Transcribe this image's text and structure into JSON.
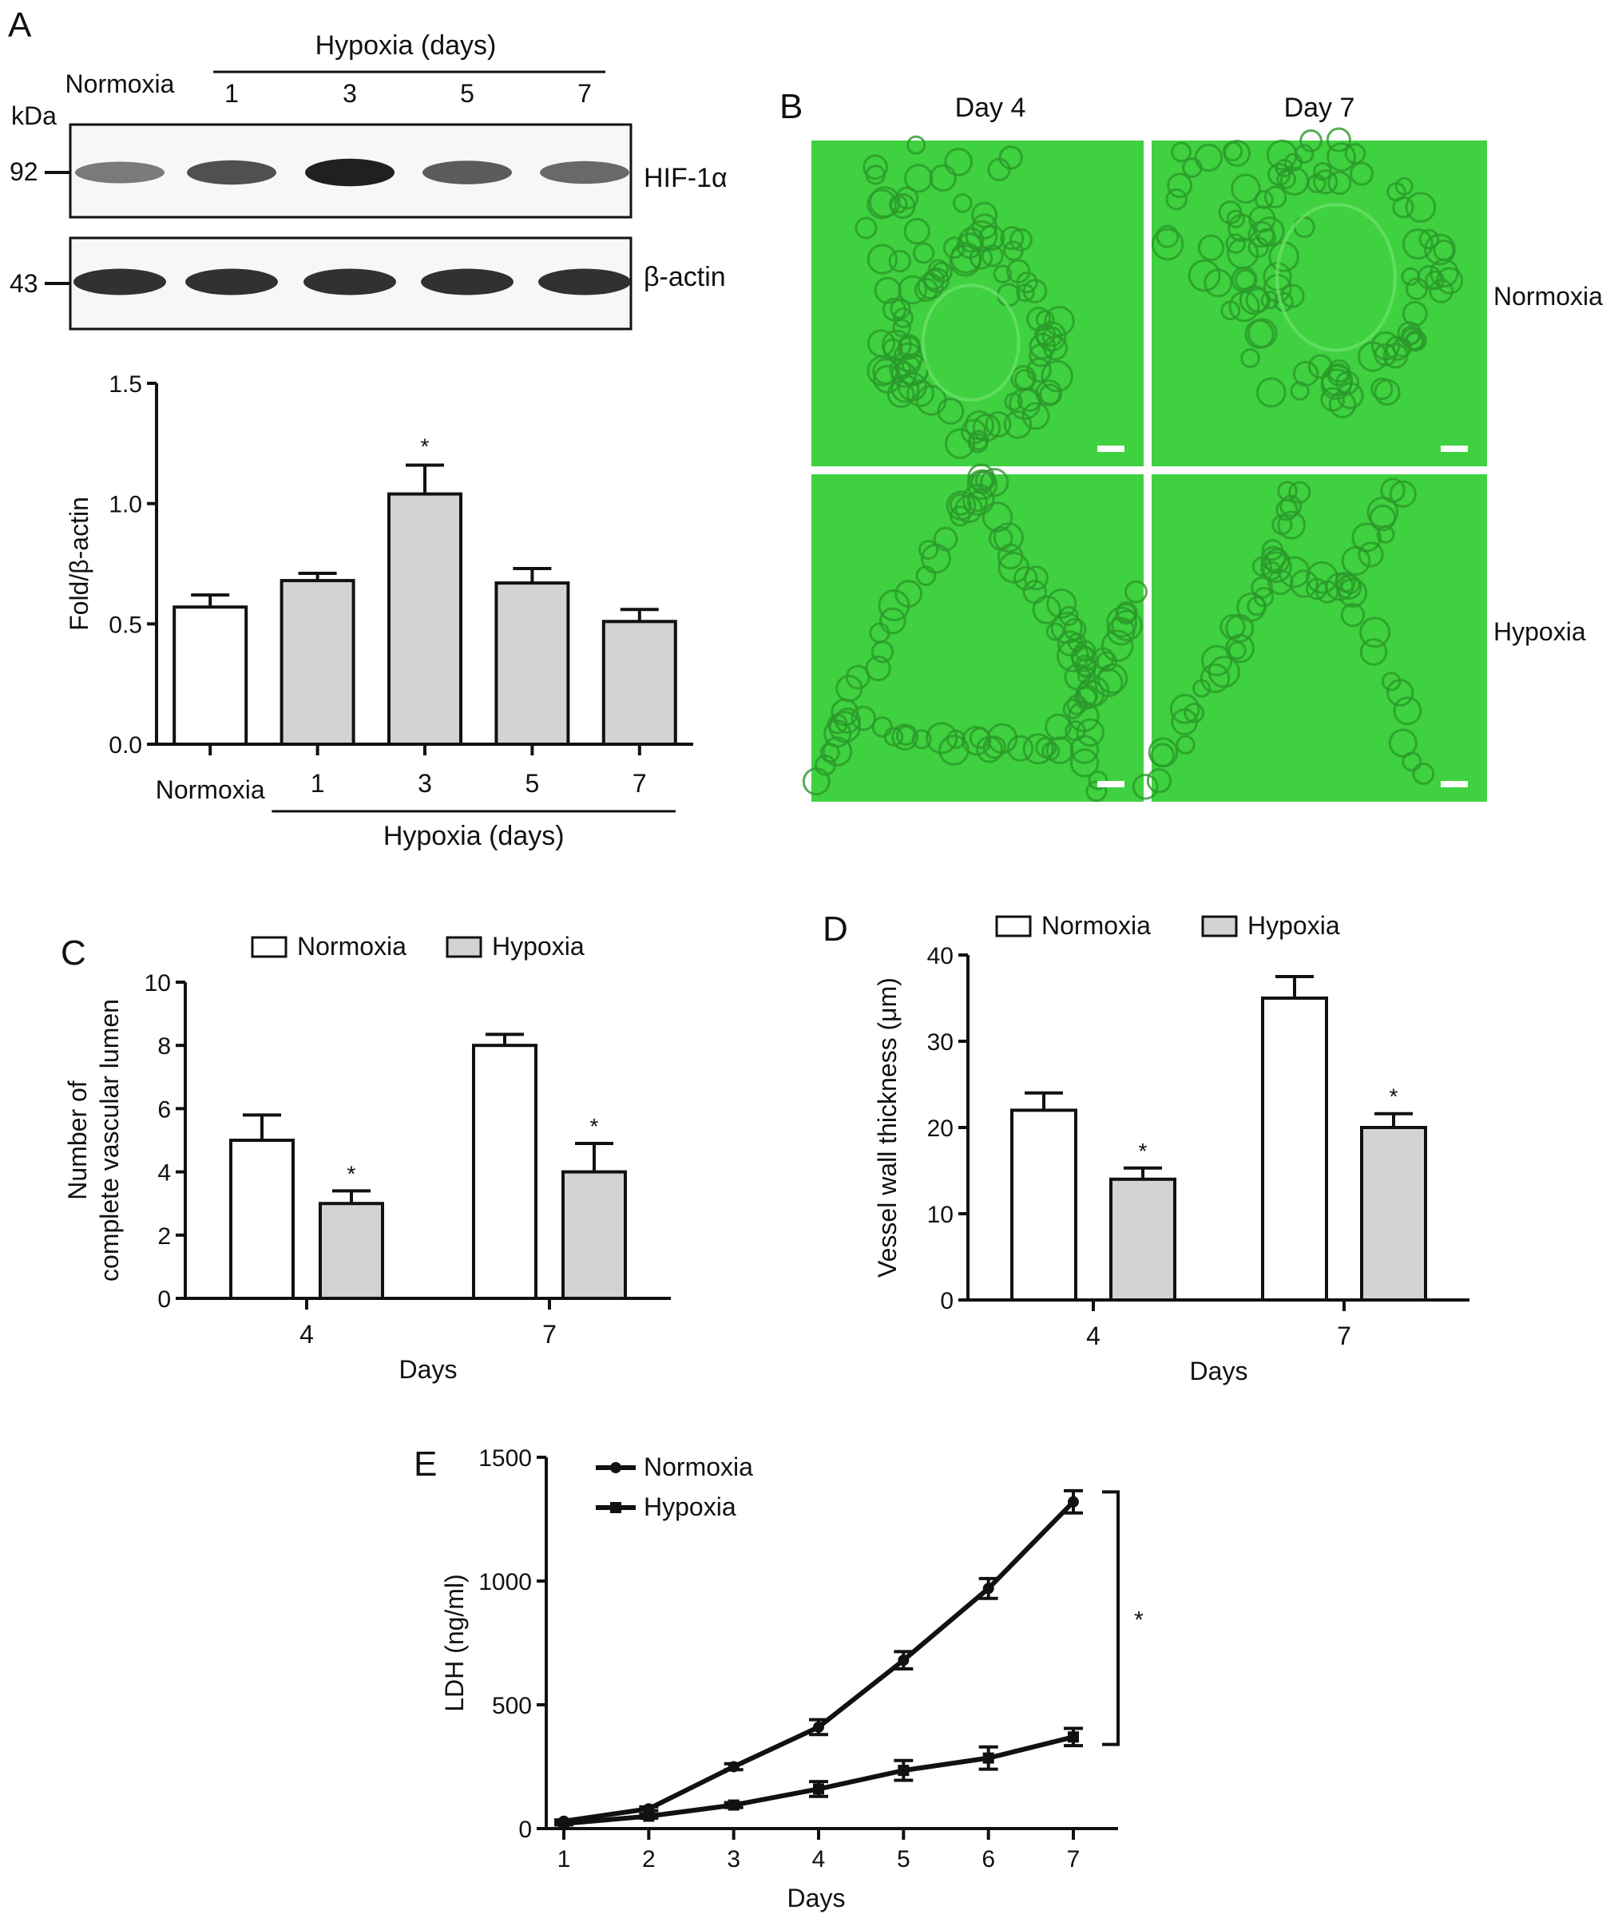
{
  "panels": {
    "A": {
      "letter": "A",
      "blot": {
        "group_header": "Hypoxia (days)",
        "lane_labels": [
          "Normoxia",
          "1",
          "3",
          "5",
          "7"
        ],
        "kda_label": "kDa",
        "markers": [
          "92",
          "43"
        ],
        "bands": [
          "HIF-1α",
          "β-actin"
        ],
        "hif_intensity": [
          0.55,
          0.72,
          0.92,
          0.68,
          0.62
        ],
        "actin_intensity": [
          0.85,
          0.85,
          0.85,
          0.85,
          0.85
        ]
      }
    },
    "B": {
      "letter": "B",
      "columns": [
        "Day 4",
        "Day 7"
      ],
      "rows": [
        "Normoxia",
        "Hypoxia"
      ],
      "colors": {
        "background": "#3fd13f",
        "cell": "#2a9a2a"
      }
    },
    "C": {
      "letter": "C"
    },
    "D": {
      "letter": "D"
    },
    "E": {
      "letter": "E"
    }
  },
  "chart_data": [
    {
      "id": "A",
      "type": "bar",
      "categories": [
        "Normoxia",
        "1",
        "3",
        "5",
        "7"
      ],
      "values": [
        0.57,
        0.68,
        1.04,
        0.67,
        0.51
      ],
      "errors": [
        0.05,
        0.03,
        0.12,
        0.06,
        0.05
      ],
      "significant": [
        false,
        false,
        true,
        false,
        false
      ],
      "ylabel": "Fold/β-actin",
      "xlabel": "",
      "group_label": "Hypoxia (days)",
      "ylim": [
        0,
        1.5
      ],
      "yticks": [
        "0.0",
        "0.5",
        "1.0",
        "1.5"
      ],
      "yticks_values": [
        0,
        0.5,
        1.0,
        1.5
      ],
      "colors": [
        "#ffffff",
        "#d3d3d3",
        "#d3d3d3",
        "#d3d3d3",
        "#d3d3d3"
      ],
      "significance_mark": "*"
    },
    {
      "id": "C",
      "type": "bar",
      "categories": [
        "4",
        "7"
      ],
      "series": [
        {
          "name": "Normoxia",
          "values": [
            5,
            8
          ],
          "errors": [
            0.8,
            0.35
          ],
          "significant": [
            false,
            false
          ],
          "color": "#ffffff"
        },
        {
          "name": "Hypoxia",
          "values": [
            3,
            4
          ],
          "errors": [
            0.4,
            0.9
          ],
          "significant": [
            true,
            true
          ],
          "color": "#d3d3d3"
        }
      ],
      "xlabel": "Days",
      "ylabel_lines": [
        "Number of",
        "complete vascular lumen"
      ],
      "ylim": [
        0,
        10
      ],
      "yticks": [
        "0",
        "2",
        "4",
        "6",
        "8",
        "10"
      ],
      "yticks_values": [
        0,
        2,
        4,
        6,
        8,
        10
      ],
      "legend": "top",
      "significance_mark": "*"
    },
    {
      "id": "D",
      "type": "bar",
      "categories": [
        "4",
        "7"
      ],
      "series": [
        {
          "name": "Normoxia",
          "values": [
            22,
            35
          ],
          "errors": [
            2,
            2.5
          ],
          "significant": [
            false,
            false
          ],
          "color": "#ffffff"
        },
        {
          "name": "Hypoxia",
          "values": [
            14,
            20
          ],
          "errors": [
            1.3,
            1.6
          ],
          "significant": [
            true,
            true
          ],
          "color": "#d3d3d3"
        }
      ],
      "xlabel": "Days",
      "ylabel": "Vessel wall thickness (μm)",
      "ylim": [
        0,
        40
      ],
      "yticks": [
        "0",
        "10",
        "20",
        "30",
        "40"
      ],
      "yticks_values": [
        0,
        10,
        20,
        30,
        40
      ],
      "legend": "top",
      "significance_mark": "*"
    },
    {
      "id": "E",
      "type": "line",
      "x": [
        1,
        2,
        3,
        4,
        5,
        6,
        7
      ],
      "xticks": [
        "1",
        "2",
        "3",
        "4",
        "5",
        "6",
        "7"
      ],
      "series": [
        {
          "name": "Normoxia",
          "marker": "circle",
          "values": [
            30,
            80,
            250,
            410,
            680,
            970,
            1320
          ],
          "errors": [
            5,
            8,
            12,
            30,
            35,
            40,
            45
          ]
        },
        {
          "name": "Hypoxia",
          "marker": "square",
          "values": [
            20,
            50,
            95,
            160,
            235,
            285,
            370
          ],
          "errors": [
            5,
            8,
            10,
            30,
            40,
            45,
            35
          ]
        }
      ],
      "xlabel": "Days",
      "ylabel": "LDH (ng/ml)",
      "ylim": [
        0,
        1500
      ],
      "yticks": [
        "0",
        "500",
        "1000",
        "1500"
      ],
      "yticks_values": [
        0,
        500,
        1000,
        1500
      ],
      "legend": "top-left",
      "significance_mark": "*"
    }
  ]
}
